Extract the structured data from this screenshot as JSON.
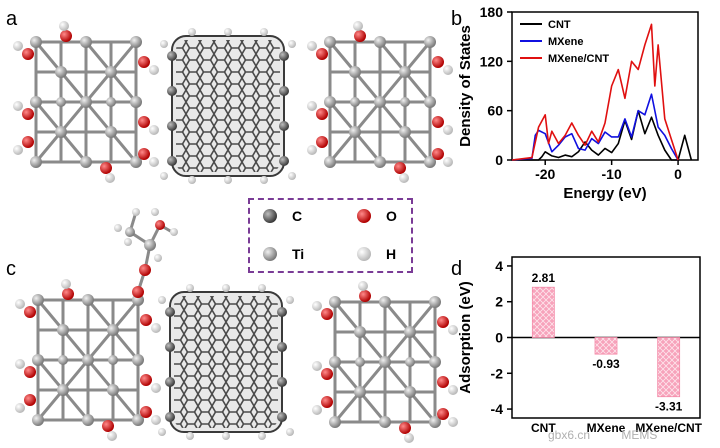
{
  "panels": {
    "a": "a",
    "b": "b",
    "c": "c",
    "d": "d"
  },
  "legend": [
    {
      "symbol": "C",
      "color": "#555555"
    },
    {
      "symbol": "O",
      "color": "#e00000"
    },
    {
      "symbol": "Ti",
      "color": "#9a9a9a"
    },
    {
      "symbol": "H",
      "color": "#f2f2f2"
    }
  ],
  "watermark": {
    "site": "gbx6.cn",
    "brand": "MEMS"
  },
  "chart_data": [
    {
      "type": "line",
      "panel": "b",
      "xlabel": "Energy (eV)",
      "ylabel": "Density of States",
      "xlim": [
        -25,
        3
      ],
      "ylim": [
        0,
        180
      ],
      "xticks": [
        -20,
        -10,
        0
      ],
      "yticks": [
        0,
        60,
        120,
        180
      ],
      "legend_position": "top-left",
      "series": [
        {
          "name": "CNT",
          "color": "#000000",
          "x": [
            -25,
            -21,
            -20.5,
            -20,
            -19,
            -18,
            -17,
            -16,
            -15,
            -14,
            -13,
            -12,
            -11,
            -10,
            -9,
            -8,
            -7,
            -6,
            -5,
            -4,
            -3,
            -2,
            -1,
            0,
            1,
            2
          ],
          "y": [
            0,
            0,
            4,
            10,
            5,
            3,
            6,
            4,
            10,
            22,
            12,
            6,
            14,
            9,
            20,
            48,
            25,
            60,
            32,
            52,
            30,
            12,
            0,
            0,
            30,
            0
          ]
        },
        {
          "name": "MXene",
          "color": "#1010e0",
          "x": [
            -25,
            -22,
            -21.5,
            -21,
            -20,
            -19,
            -18,
            -17,
            -16,
            -15,
            -14,
            -13,
            -12,
            -11,
            -10,
            -9,
            -8,
            -7,
            -6,
            -5,
            -4,
            -3,
            -2,
            -1,
            0
          ],
          "y": [
            0,
            2,
            30,
            36,
            32,
            10,
            18,
            28,
            32,
            14,
            12,
            26,
            20,
            34,
            28,
            28,
            50,
            28,
            60,
            55,
            80,
            40,
            30,
            14,
            0
          ]
        },
        {
          "name": "MXene/CNT",
          "color": "#e01010",
          "x": [
            -25,
            -22,
            -21,
            -20,
            -19.5,
            -19,
            -18,
            -17,
            -16,
            -15,
            -14,
            -13,
            -12,
            -11,
            -10,
            -9,
            -8,
            -7,
            -6,
            -5,
            -4,
            -3.5,
            -3,
            -2,
            -1,
            0
          ],
          "y": [
            0,
            3,
            40,
            55,
            20,
            35,
            20,
            30,
            45,
            30,
            18,
            35,
            22,
            45,
            90,
            110,
            75,
            120,
            110,
            140,
            165,
            90,
            140,
            50,
            25,
            0
          ]
        }
      ]
    },
    {
      "type": "bar",
      "panel": "d",
      "ylabel": "Adsorption (eV)",
      "categories": [
        "CNT",
        "MXene",
        "MXene/CNT"
      ],
      "values": [
        2.81,
        -0.93,
        -3.31
      ],
      "value_labels": [
        "2.81",
        "-0.93",
        "-3.31"
      ],
      "ylim": [
        -4.5,
        4.5
      ],
      "yticks": [
        -4,
        -2,
        0,
        2,
        4
      ],
      "bar_color": "#f48aa8"
    }
  ]
}
